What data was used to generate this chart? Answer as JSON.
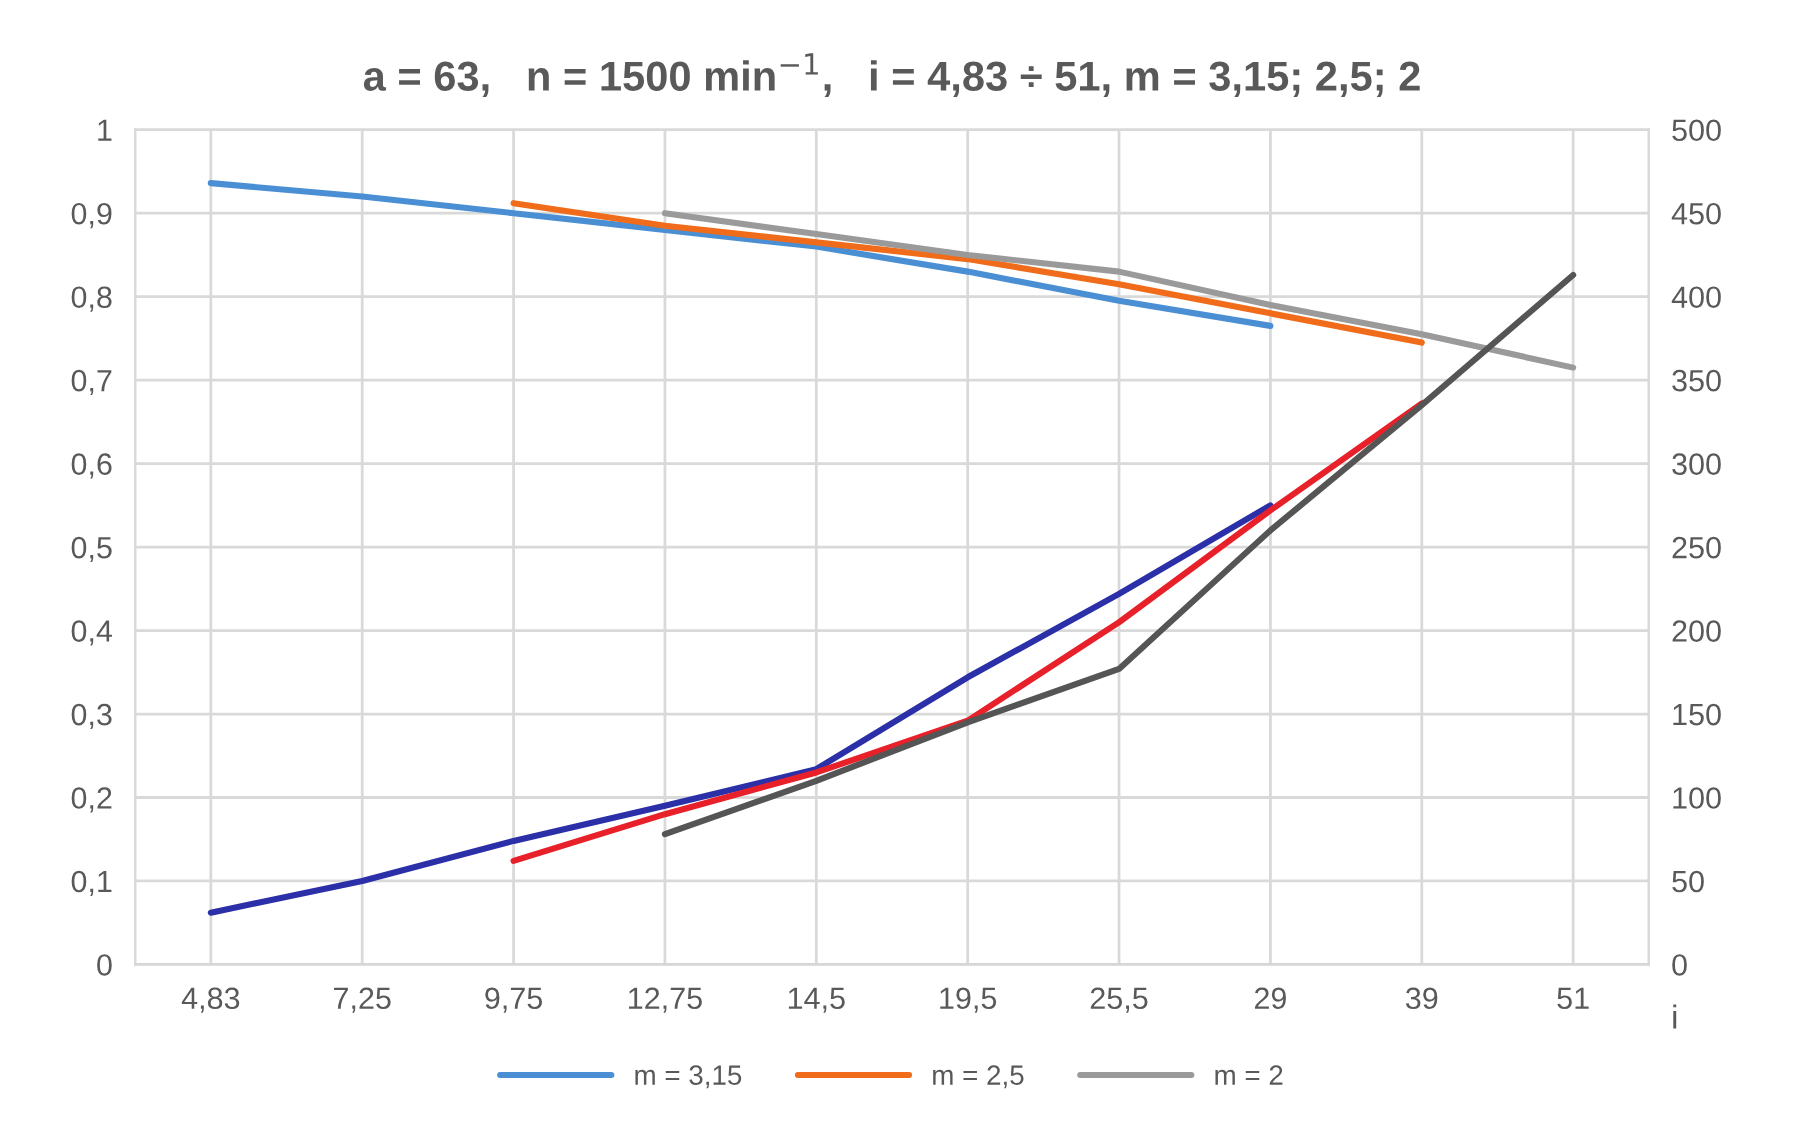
{
  "chart_data": {
    "type": "line",
    "title": "a = 63,   n = 1500 min$^{−1}$,   i = 4,83 ÷ 51, m = 3,15; 2,5; 2",
    "xlabel": "i",
    "categories": [
      "4,83",
      "7,25",
      "9,75",
      "12,75",
      "14,5",
      "19,5",
      "25,5",
      "29",
      "39",
      "51"
    ],
    "series": [
      {
        "name": "m = 3,15",
        "color": "#4a8fd4",
        "values": [
          0.936,
          0.92,
          0.9,
          0.88,
          0.86,
          0.83,
          0.795,
          0.765,
          null,
          null
        ]
      },
      {
        "name": "m = 2,5",
        "color": "#f06c1a",
        "values": [
          null,
          null,
          0.912,
          0.885,
          0.865,
          0.845,
          0.815,
          0.78,
          0.745,
          null
        ]
      },
      {
        "name": "m = 2",
        "color": "#9a9a9a",
        "values": [
          null,
          null,
          null,
          0.9,
          0.875,
          0.85,
          0.83,
          0.79,
          0.755,
          0.715
        ]
      },
      {
        "axis": "y2",
        "color": "#2b2fa8",
        "values": [
          31,
          50,
          74,
          95,
          117,
          172,
          222,
          275,
          null,
          null
        ]
      },
      {
        "axis": "y2",
        "color": "#e8202a",
        "values": [
          null,
          null,
          62,
          90,
          115,
          146,
          205,
          272,
          336,
          null
        ]
      },
      {
        "axis": "y2",
        "color": "#555555",
        "values": [
          null,
          null,
          null,
          78,
          110,
          145,
          177,
          260,
          335,
          413
        ]
      }
    ],
    "ylim": [
      0,
      1
    ],
    "yticks": [
      0,
      {
        "value": 0.1,
        "label": "0,1"
      },
      {
        "value": 0.2,
        "label": "0,2"
      },
      {
        "value": 0.3,
        "label": "0,3"
      },
      {
        "value": 0.4,
        "label": "0,4"
      },
      {
        "value": 0.5,
        "label": "0,5"
      },
      {
        "value": 0.6,
        "label": "0,6"
      },
      {
        "value": 0.7,
        "label": "0,7"
      },
      {
        "value": 0.8,
        "label": "0,8"
      },
      {
        "value": 0.9,
        "label": "0,9"
      },
      1
    ],
    "y2lim": [
      0,
      500
    ],
    "y2ticks": [
      0,
      50,
      100,
      150,
      200,
      250,
      300,
      350,
      400,
      450,
      500
    ],
    "grid": true,
    "legend": "bottom",
    "line_style": "solid",
    "marker": "none"
  }
}
